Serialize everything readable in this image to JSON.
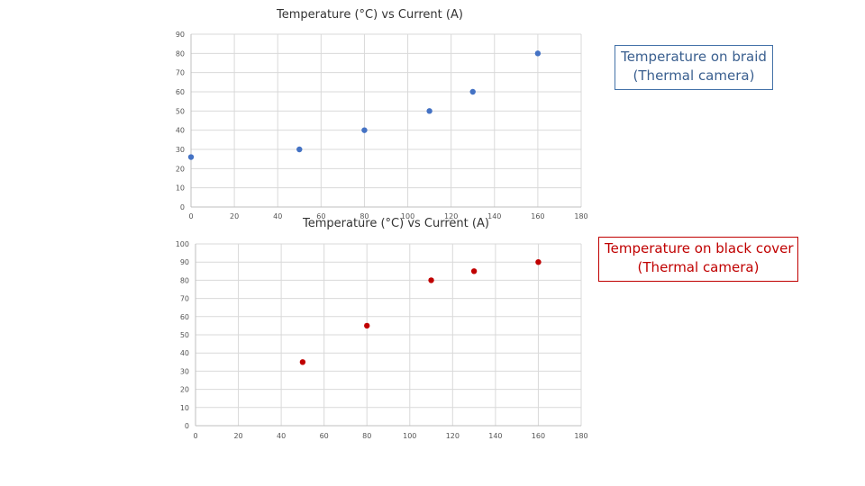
{
  "chart_data": [
    {
      "type": "scatter",
      "title": "Temperature  (°C) vs Current (A)",
      "xlim": [
        0,
        180
      ],
      "ylim": [
        0,
        90
      ],
      "x_ticks": [
        0,
        20,
        40,
        60,
        80,
        100,
        120,
        140,
        160,
        180
      ],
      "y_ticks": [
        0,
        10,
        20,
        30,
        40,
        50,
        60,
        70,
        80,
        90
      ],
      "grid": true,
      "color": "#4472c4",
      "legend": [
        "Temperature on braid",
        "(Thermal camera)"
      ],
      "legend_color": "#3a5f8f",
      "series": [
        {
          "points": [
            [
              0,
              26
            ],
            [
              50,
              30
            ],
            [
              80,
              40
            ],
            [
              110,
              50
            ],
            [
              130,
              60
            ],
            [
              160,
              80
            ]
          ]
        }
      ]
    },
    {
      "type": "scatter",
      "title": "Temperature  (°C) vs Current (A)",
      "xlim": [
        0,
        180
      ],
      "ylim": [
        0,
        100
      ],
      "x_ticks": [
        0,
        20,
        40,
        60,
        80,
        100,
        120,
        140,
        160,
        180
      ],
      "y_ticks": [
        0,
        10,
        20,
        30,
        40,
        50,
        60,
        70,
        80,
        90,
        100
      ],
      "grid": true,
      "color": "#c00000",
      "legend": [
        "Temperature on black cover",
        "(Thermal camera)"
      ],
      "legend_color": "#c00000",
      "series": [
        {
          "points": [
            [
              50,
              35
            ],
            [
              80,
              55
            ],
            [
              110,
              80
            ],
            [
              130,
              85
            ],
            [
              160,
              90
            ]
          ]
        }
      ]
    }
  ]
}
